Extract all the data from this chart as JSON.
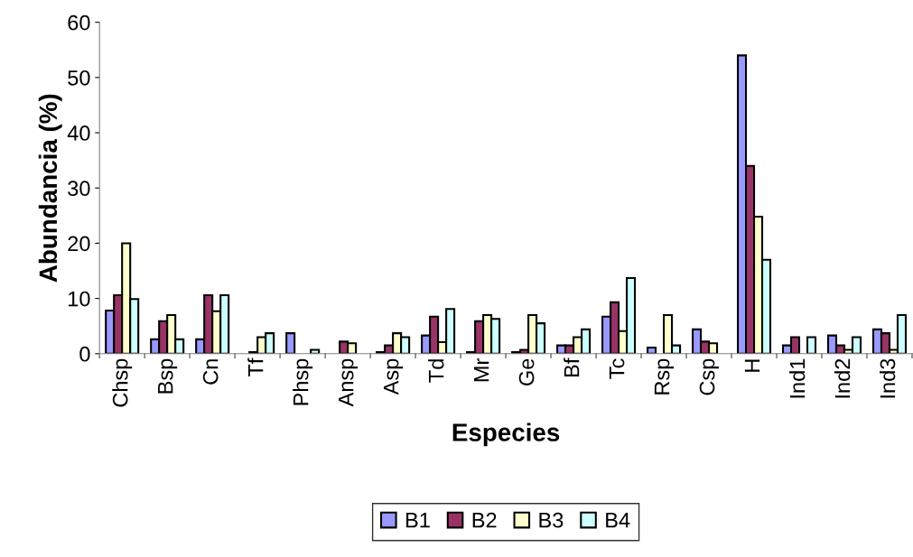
{
  "chart_data": {
    "type": "bar",
    "xlabel": "Especies",
    "ylabel": "Abundancia (%)",
    "categories": [
      "Chsp",
      "Bsp",
      "Cn",
      "Tf",
      "Phsp",
      "Ansp",
      "Asp",
      "Td",
      "Mr",
      "Ge",
      "Bf",
      "Tc",
      "Rsp",
      "Csp",
      "H",
      "Ind1",
      "Ind2",
      "Ind3"
    ],
    "series": [
      {
        "name": "B1",
        "color": "#9999ff",
        "values": [
          7.8,
          2.6,
          2.6,
          null,
          3.7,
          null,
          0.3,
          3.3,
          0.3,
          0.3,
          1.5,
          6.7,
          1.1,
          4.4,
          54,
          1.5,
          3.3,
          4.4
        ]
      },
      {
        "name": "B2",
        "color": "#993366",
        "values": [
          10.6,
          5.9,
          10.6,
          0.3,
          null,
          2.2,
          1.5,
          6.7,
          5.9,
          0.7,
          1.5,
          9.3,
          null,
          2.2,
          34,
          3,
          1.5,
          3.7
        ]
      },
      {
        "name": "B3",
        "color": "#ffffcc",
        "values": [
          20,
          7,
          7.7,
          3,
          null,
          1.9,
          3.7,
          2.1,
          7,
          7,
          3,
          4.1,
          7,
          1.9,
          24.8,
          null,
          0.7,
          0.7
        ]
      },
      {
        "name": "B4",
        "color": "#ccffff",
        "values": [
          9.9,
          2.6,
          10.6,
          3.7,
          0.7,
          null,
          3,
          8.1,
          6.3,
          5.5,
          4.4,
          13.7,
          1.5,
          null,
          17,
          3,
          3,
          7
        ]
      }
    ],
    "ylim": [
      0,
      60
    ],
    "yticks": [
      0,
      10,
      20,
      30,
      40,
      50,
      60
    ],
    "grid": false,
    "legend": "bottom"
  }
}
